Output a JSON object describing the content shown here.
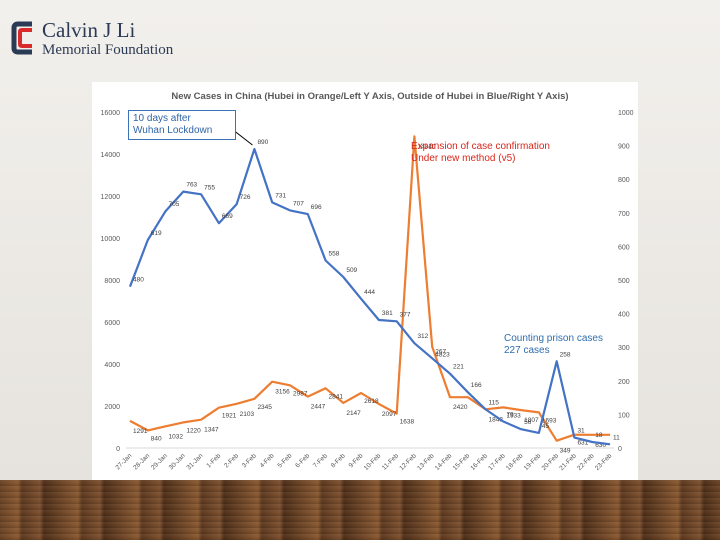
{
  "logo": {
    "name": "Calvin J Li",
    "subtitle": "Memorial Foundation",
    "colors": {
      "primary": "#2b3a55",
      "accent": "#d92b2b"
    }
  },
  "annotations": {
    "wuhan": "10 days after\nWuhan Lockdown",
    "expansion": "Expansion of case confirmation\nUnder new method (v5)",
    "prison": "Counting prison cases\n227 cases"
  },
  "chart_data": {
    "type": "line",
    "title": "New Cases in China (Hubei in Orange/Left Y Axis, Outside of Hubei in Blue/Right Y Axis)",
    "categories": [
      "27-Jan",
      "28-Jan",
      "29-Jan",
      "30-Jan",
      "31-Jan",
      "1-Feb",
      "2-Feb",
      "3-Feb",
      "4-Feb",
      "5-Feb",
      "6-Feb",
      "7-Feb",
      "8-Feb",
      "9-Feb",
      "10-Feb",
      "11-Feb",
      "12-Feb",
      "13-Feb",
      "14-Feb",
      "15-Feb",
      "16-Feb",
      "17-Feb",
      "18-Feb",
      "19-Feb",
      "20-Feb",
      "21-Feb",
      "22-Feb",
      "23-Feb"
    ],
    "left_axis": {
      "min": 0,
      "max": 16000,
      "ticks": [
        "0",
        "2000",
        "4000",
        "6000",
        "8000",
        "10000",
        "12000",
        "14000",
        "16000"
      ]
    },
    "right_axis": {
      "min": 0,
      "max": 1000,
      "ticks": [
        "0",
        "100",
        "200",
        "300",
        "400",
        "500",
        "600",
        "700",
        "800",
        "900",
        "1000"
      ]
    },
    "series": [
      {
        "name": "Hubei",
        "axis": "left",
        "color": "#ed7d31",
        "values": [
          1291,
          840,
          1032,
          1220,
          1347,
          1921,
          2103,
          2345,
          3156,
          2987,
          2447,
          2841,
          2147,
          2618,
          2097,
          1638,
          14840,
          4823,
          2420,
          2420,
          1843,
          1933,
          1807,
          1693,
          349,
          631,
          630,
          630
        ],
        "labels": [
          "1291",
          "840",
          "1032",
          "1220",
          "1347",
          "1921",
          "2103",
          "2345",
          "3156",
          "2987",
          "2447",
          "2841",
          "2147",
          "2618",
          "2097",
          "1638",
          "14840",
          "4823",
          "2420",
          "",
          "1843",
          "1933",
          "1807",
          "1693",
          "349",
          "631",
          "630",
          ""
        ]
      },
      {
        "name": "Outside of Hubei",
        "axis": "right",
        "color": "#4472c4",
        "values": [
          480,
          619,
          705,
          763,
          755,
          669,
          726,
          890,
          731,
          707,
          696,
          558,
          509,
          444,
          381,
          377,
          312,
          267,
          221,
          166,
          115,
          79,
          56,
          45,
          258,
          31,
          18,
          11
        ],
        "labels": [
          "480",
          "619",
          "705",
          "763",
          "755",
          "669",
          "726",
          "890",
          "731",
          "707",
          "696",
          "558",
          "509",
          "444",
          "381",
          "377",
          "312",
          "267",
          "221",
          "166",
          "115",
          "79",
          "56",
          "45",
          "258",
          "31",
          "18",
          "11"
        ]
      }
    ]
  }
}
